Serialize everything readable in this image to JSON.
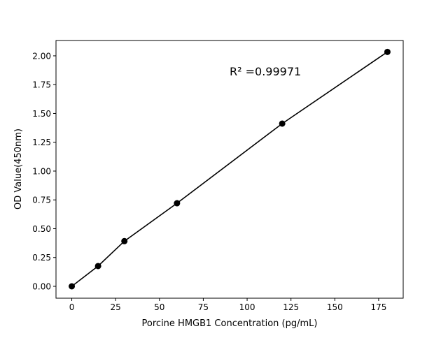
{
  "chart_data": {
    "type": "line",
    "title": "",
    "xlabel": "Porcine HMGB1 Concentration (pg/mL)",
    "ylabel": "OD Value(450nm)",
    "xlim": [
      -9,
      189
    ],
    "ylim": [
      -0.103,
      2.133
    ],
    "xticks": [
      0,
      25,
      50,
      75,
      100,
      125,
      150,
      175
    ],
    "xtick_labels": [
      "0",
      "25",
      "50",
      "75",
      "100",
      "125",
      "150",
      "175"
    ],
    "yticks": [
      0,
      0.25,
      0.5,
      0.75,
      1.0,
      1.25,
      1.5,
      1.75,
      2.0
    ],
    "ytick_labels": [
      "0.00",
      "0.25",
      "0.50",
      "0.75",
      "1.00",
      "1.25",
      "1.50",
      "1.75",
      "2.00"
    ],
    "grid": false,
    "annotation": "R² =0.99971",
    "series": [
      {
        "x": [
          0,
          15,
          30,
          60,
          120,
          180
        ],
        "y": [
          0.0,
          0.176,
          0.392,
          0.721,
          1.412,
          2.034
        ],
        "color": "#000000",
        "marker": "circle"
      }
    ]
  }
}
